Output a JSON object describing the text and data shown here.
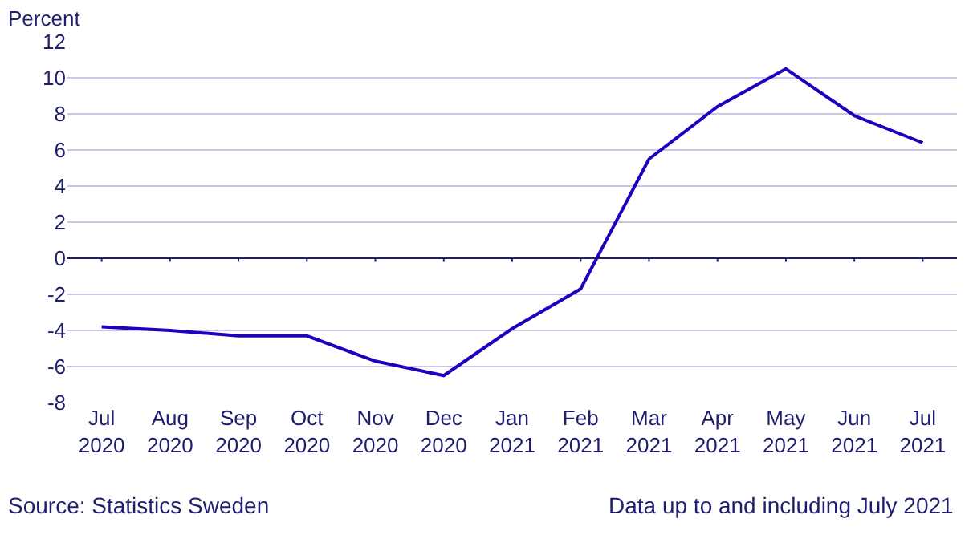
{
  "chart_data": {
    "type": "line",
    "ylabel": "Percent",
    "categories": [
      "Jul 2020",
      "Aug 2020",
      "Sep 2020",
      "Oct 2020",
      "Nov 2020",
      "Dec 2020",
      "Jan 2021",
      "Feb 2021",
      "Mar 2021",
      "Apr 2021",
      "May 2021",
      "Jun 2021",
      "Jul 2021"
    ],
    "series": [
      {
        "color": "#1e00be",
        "values": [
          -3.8,
          -4.0,
          -4.3,
          -4.3,
          -5.7,
          -6.5,
          -3.9,
          -1.7,
          5.5,
          8.4,
          10.5,
          7.9,
          6.4
        ]
      }
    ],
    "ylim": [
      -8,
      12
    ],
    "yticks": [
      -8,
      -6,
      -4,
      -2,
      0,
      2,
      4,
      6,
      8,
      10,
      12
    ],
    "grid": "y",
    "ref_lines": [
      {
        "axis": "y",
        "value": 0,
        "color": "#1e1e6e"
      }
    ],
    "marker": "none",
    "line_style": "solid",
    "annotations": [
      "Source: Statistics Sweden",
      "Data up to and including July 2021"
    ]
  }
}
